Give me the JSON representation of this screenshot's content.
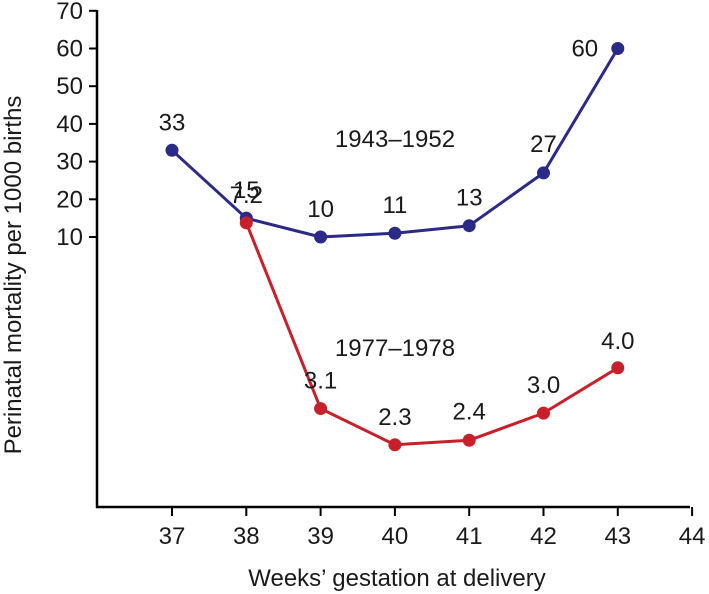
{
  "chart_data": {
    "type": "line",
    "xlabel": "Weeks’ gestation at delivery",
    "ylabel": "Perinatal mortality per 1000 births",
    "x_ticks": [
      37,
      38,
      39,
      40,
      41,
      42,
      43,
      44
    ],
    "y_ticks": [
      10,
      20,
      30,
      40,
      50,
      60,
      70
    ],
    "xlim": [
      36.2,
      44
    ],
    "ylim_upper_panel": [
      10,
      70
    ],
    "series": [
      {
        "name": "1943–1952",
        "color": "#2b2a86",
        "x": [
          37,
          38,
          39,
          40,
          41,
          42,
          43
        ],
        "values": [
          33,
          15,
          10,
          11,
          13,
          27,
          60
        ],
        "labels": [
          "33",
          "15",
          "10",
          "11",
          "13",
          "27",
          "60"
        ]
      },
      {
        "name": "1977–1978",
        "color": "#c8202a",
        "x": [
          38,
          39,
          40,
          41,
          42,
          43
        ],
        "values": [
          7.2,
          3.1,
          2.3,
          2.4,
          3.0,
          4.0
        ],
        "labels": [
          "7.2",
          "3.1",
          "2.3",
          "2.4",
          "3.0",
          "4.0"
        ]
      }
    ]
  }
}
